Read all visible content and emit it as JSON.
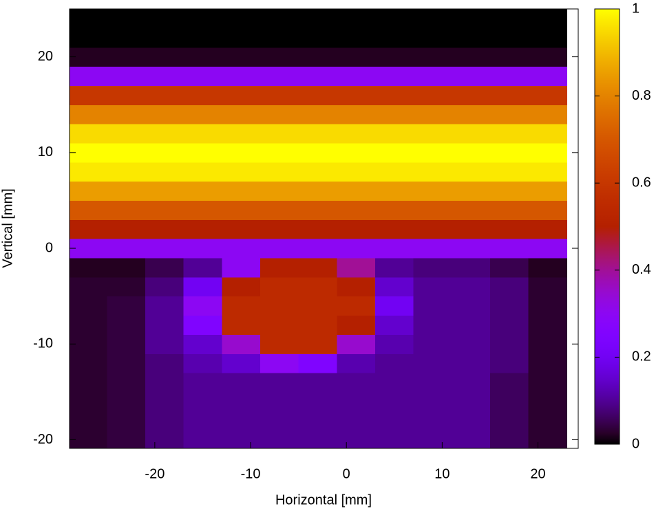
{
  "chart_data": {
    "type": "heatmap",
    "xlabel": "Horizontal [mm]",
    "ylabel": "Vertical [mm]",
    "x": [
      -27,
      -23,
      -19,
      -15,
      -11,
      -7,
      -3,
      1,
      5,
      9,
      13,
      17,
      21
    ],
    "y": [
      -20,
      -18,
      -16,
      -14,
      -12,
      -10,
      -8,
      -6,
      -4,
      -2,
      0,
      2,
      4,
      6,
      8,
      10,
      12,
      14,
      16,
      18,
      20,
      22,
      24
    ],
    "z": [
      [
        0.03,
        0.04,
        0.08,
        0.1,
        0.1,
        0.1,
        0.1,
        0.1,
        0.1,
        0.1,
        0.1,
        0.06,
        0.03
      ],
      [
        0.03,
        0.04,
        0.08,
        0.1,
        0.1,
        0.1,
        0.1,
        0.1,
        0.1,
        0.1,
        0.1,
        0.06,
        0.03
      ],
      [
        0.03,
        0.04,
        0.08,
        0.1,
        0.1,
        0.1,
        0.1,
        0.1,
        0.1,
        0.1,
        0.1,
        0.06,
        0.03
      ],
      [
        0.03,
        0.04,
        0.08,
        0.1,
        0.1,
        0.1,
        0.1,
        0.1,
        0.1,
        0.1,
        0.1,
        0.06,
        0.03
      ],
      [
        0.03,
        0.04,
        0.08,
        0.12,
        0.15,
        0.3,
        0.25,
        0.12,
        0.1,
        0.1,
        0.1,
        0.08,
        0.03
      ],
      [
        0.03,
        0.04,
        0.1,
        0.15,
        0.35,
        0.55,
        0.55,
        0.35,
        0.12,
        0.1,
        0.1,
        0.08,
        0.03
      ],
      [
        0.03,
        0.04,
        0.1,
        0.25,
        0.55,
        0.55,
        0.55,
        0.5,
        0.15,
        0.1,
        0.1,
        0.08,
        0.03
      ],
      [
        0.03,
        0.04,
        0.1,
        0.3,
        0.55,
        0.55,
        0.55,
        0.55,
        0.2,
        0.1,
        0.1,
        0.08,
        0.03
      ],
      [
        0.03,
        0.03,
        0.08,
        0.2,
        0.5,
        0.55,
        0.55,
        0.5,
        0.15,
        0.1,
        0.1,
        0.08,
        0.03
      ],
      [
        0.02,
        0.02,
        0.05,
        0.1,
        0.3,
        0.5,
        0.5,
        0.4,
        0.1,
        0.08,
        0.08,
        0.05,
        0.02
      ],
      [
        0.3,
        0.3,
        0.3,
        0.3,
        0.3,
        0.3,
        0.3,
        0.3,
        0.3,
        0.3,
        0.3,
        0.3,
        0.3
      ],
      [
        0.5,
        0.5,
        0.5,
        0.5,
        0.5,
        0.5,
        0.5,
        0.5,
        0.5,
        0.5,
        0.5,
        0.5,
        0.5
      ],
      [
        0.7,
        0.7,
        0.7,
        0.7,
        0.7,
        0.7,
        0.7,
        0.7,
        0.7,
        0.7,
        0.7,
        0.7,
        0.7
      ],
      [
        0.85,
        0.85,
        0.85,
        0.85,
        0.85,
        0.85,
        0.85,
        0.85,
        0.85,
        0.85,
        0.85,
        0.85,
        0.85
      ],
      [
        0.97,
        0.97,
        0.97,
        0.97,
        0.97,
        0.97,
        0.97,
        0.97,
        0.97,
        0.97,
        0.97,
        0.97,
        0.97
      ],
      [
        1,
        1,
        1,
        1,
        1,
        1,
        1,
        1,
        1,
        1,
        1,
        1,
        1
      ],
      [
        0.95,
        0.95,
        0.95,
        0.95,
        0.95,
        0.95,
        0.95,
        0.95,
        0.95,
        0.95,
        0.95,
        0.95,
        0.95
      ],
      [
        0.8,
        0.8,
        0.8,
        0.8,
        0.8,
        0.8,
        0.8,
        0.8,
        0.8,
        0.8,
        0.8,
        0.8,
        0.8
      ],
      [
        0.6,
        0.6,
        0.6,
        0.6,
        0.6,
        0.6,
        0.6,
        0.6,
        0.6,
        0.6,
        0.6,
        0.6,
        0.6
      ],
      [
        0.3,
        0.3,
        0.3,
        0.3,
        0.3,
        0.3,
        0.3,
        0.3,
        0.3,
        0.3,
        0.3,
        0.3,
        0.3
      ],
      [
        0.02,
        0.02,
        0.02,
        0.02,
        0.02,
        0.02,
        0.02,
        0.02,
        0.02,
        0.02,
        0.02,
        0.02,
        0.02
      ],
      [
        0,
        0,
        0,
        0,
        0,
        0,
        0,
        0,
        0,
        0,
        0,
        0,
        0
      ],
      [
        0,
        0,
        0,
        0,
        0,
        0,
        0,
        0,
        0,
        0,
        0,
        0,
        0
      ]
    ],
    "colormap": "gnuplot",
    "xlim": [
      -28.9,
      24.2
    ],
    "ylim": [
      -20.9,
      25
    ],
    "xticks": [
      -20,
      -10,
      0,
      10,
      20
    ],
    "yticks": [
      -20,
      -10,
      0,
      10,
      20
    ],
    "zlim": [
      0,
      1
    ],
    "zticks": [
      0,
      0.2,
      0.4,
      0.6,
      0.8,
      1
    ]
  }
}
